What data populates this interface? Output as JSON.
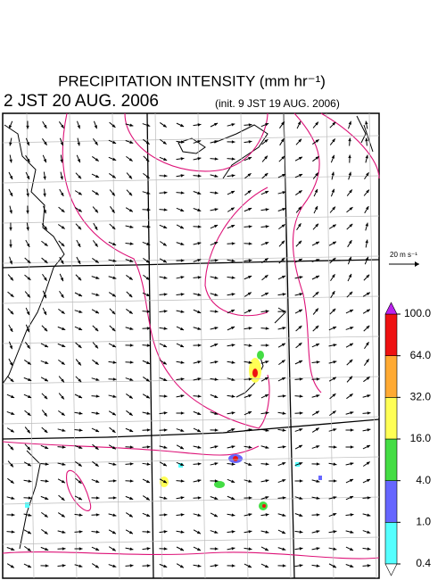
{
  "header": {
    "title": "PRECIPITATION INTENSITY (mm hr⁻¹)",
    "valid_time": "2 JST 20 AUG. 2006",
    "init_time": "(init. 9 JST 19 AUG. 2006)"
  },
  "reference_vector": "20 m s⁻¹",
  "colorbar": {
    "levels": [
      {
        "value": 0.4,
        "label": "0.4"
      },
      {
        "value": 1,
        "label": "1.0"
      },
      {
        "value": 4,
        "label": "4.0"
      },
      {
        "value": 16,
        "label": "16.0"
      },
      {
        "value": 32,
        "label": "32.0"
      },
      {
        "value": 64,
        "label": "64.0"
      },
      {
        "value": 100,
        "label": "100.0"
      }
    ],
    "colors": [
      "#55ffff",
      "#6666ff",
      "#44dd44",
      "#ffff55",
      "#ffaa33",
      "#ee1111"
    ],
    "under_color": "#ffffff",
    "over_color": "#bb22ee"
  }
}
